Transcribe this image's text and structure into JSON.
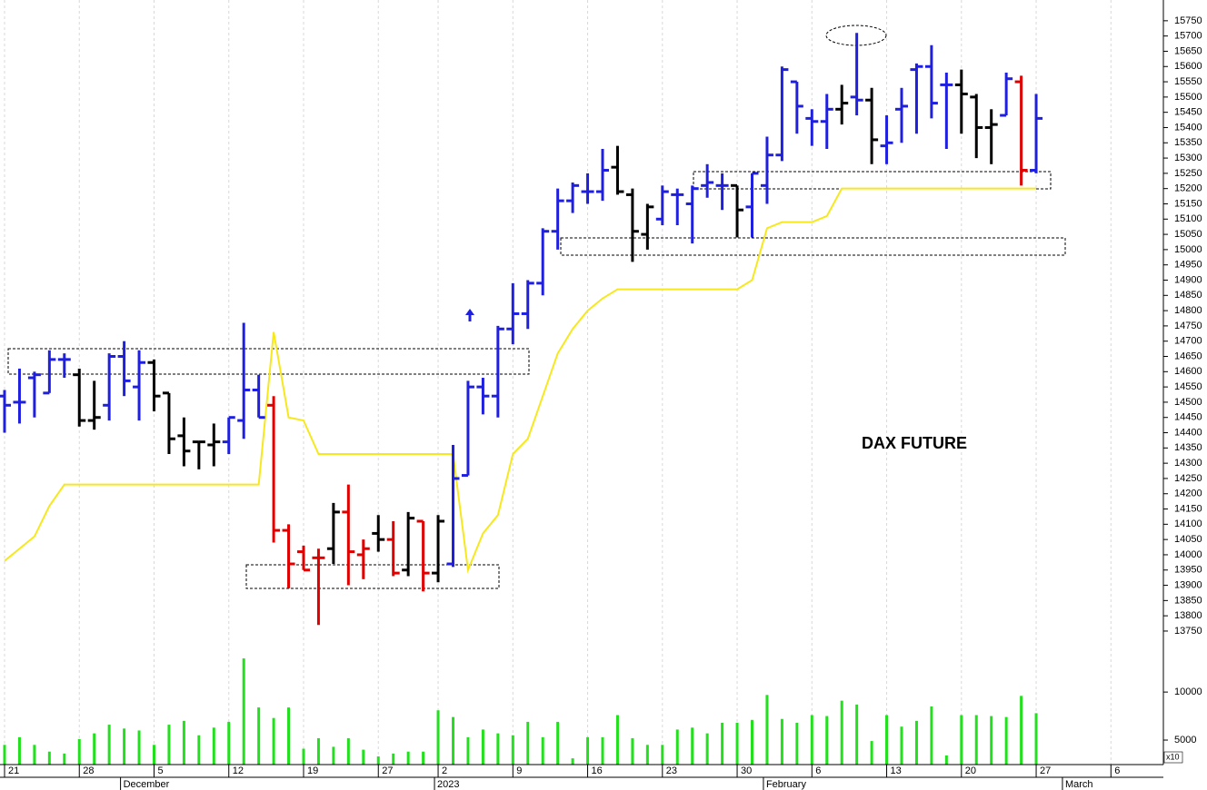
{
  "chart_data": {
    "type": "ohlc",
    "title": "DAX FUTURE",
    "categories": [
      "21",
      null,
      null,
      null,
      null,
      "28",
      null,
      null,
      null,
      null,
      "5",
      null,
      null,
      null,
      null,
      "12",
      null,
      null,
      null,
      null,
      "19",
      null,
      null,
      null,
      null,
      "27",
      null,
      null,
      null,
      "2",
      null,
      null,
      null,
      null,
      "9",
      null,
      null,
      null,
      null,
      "16",
      null,
      null,
      null,
      null,
      "23",
      null,
      null,
      null,
      null,
      "30",
      null,
      null,
      null,
      null,
      "6",
      null,
      null,
      null,
      null,
      "13",
      null,
      null,
      null,
      null,
      "20",
      null,
      null,
      null,
      null,
      "27",
      null,
      null,
      null,
      null,
      "6"
    ],
    "month_labels": [
      null,
      null,
      null,
      null,
      null,
      null,
      null,
      null,
      "December",
      null,
      null,
      null,
      null,
      null,
      null,
      null,
      null,
      null,
      null,
      null,
      null,
      null,
      null,
      null,
      null,
      null,
      null,
      null,
      null,
      "2023",
      null,
      null,
      null,
      null,
      null,
      null,
      null,
      null,
      null,
      null,
      null,
      null,
      null,
      null,
      null,
      null,
      null,
      null,
      null,
      null,
      null,
      "February",
      null,
      null,
      null,
      null,
      null,
      null,
      null,
      null,
      null,
      null,
      null,
      null,
      null,
      null,
      null,
      null,
      null,
      null,
      null,
      "March",
      null,
      null,
      null
    ],
    "open": [
      14520,
      14500,
      14580,
      14530,
      14640,
      14590,
      14440,
      14490,
      14650,
      14550,
      14630,
      14530,
      14390,
      14370,
      14360,
      14370,
      14440,
      14540,
      14490,
      14080,
      14010,
      13990,
      14020,
      14140,
      14000,
      14070,
      14050,
      13950,
      14110,
      13940,
      13970,
      14260,
      14550,
      14520,
      14740,
      14790,
      14890,
      15060,
      15160,
      15190,
      15190,
      15270,
      15180,
      15050,
      15100,
      15180,
      15150,
      15210,
      15210,
      15210,
      15140,
      15210,
      15310,
      15550,
      15430,
      15420,
      15460,
      15500,
      15490,
      15340,
      15460,
      15590,
      15600,
      15540,
      15540,
      15500,
      15400,
      15440,
      15550,
      15260,
      null,
      null,
      null,
      null,
      null
    ],
    "high": [
      14540,
      14610,
      14600,
      14670,
      14660,
      14610,
      14570,
      14660,
      14700,
      14670,
      14640,
      14530,
      14450,
      14370,
      14430,
      14450,
      14760,
      14590,
      14520,
      14100,
      14030,
      14020,
      14170,
      14230,
      14050,
      14130,
      14110,
      14140,
      14110,
      14130,
      14360,
      14570,
      14580,
      14750,
      14890,
      14900,
      15070,
      15200,
      15220,
      15250,
      15330,
      15340,
      15200,
      15150,
      15210,
      15200,
      15210,
      15280,
      15250,
      15210,
      15250,
      15370,
      15600,
      15550,
      15460,
      15510,
      15540,
      15710,
      15530,
      15440,
      15530,
      15610,
      15670,
      15580,
      15590,
      15510,
      15460,
      15580,
      15570,
      15510,
      null,
      null,
      null,
      null,
      null
    ],
    "low": [
      14400,
      14430,
      14450,
      14530,
      14580,
      14420,
      14410,
      14440,
      14520,
      14440,
      14470,
      14330,
      14290,
      14280,
      14290,
      14330,
      14380,
      14450,
      14040,
      13890,
      13950,
      13770,
      13970,
      13900,
      13920,
      14010,
      13930,
      13930,
      13880,
      13910,
      13960,
      14260,
      14460,
      14450,
      14690,
      14740,
      14850,
      15000,
      15120,
      15150,
      15160,
      15180,
      14960,
      15000,
      15080,
      15080,
      15020,
      15170,
      15130,
      15040,
      15040,
      15150,
      15290,
      15380,
      15340,
      15330,
      15410,
      15440,
      15280,
      15280,
      15350,
      15380,
      15430,
      15330,
      15380,
      15300,
      15280,
      15440,
      15210,
      15250,
      null,
      null,
      null,
      null,
      null
    ],
    "close": [
      14490,
      14500,
      14590,
      14640,
      14640,
      14440,
      14450,
      14650,
      14570,
      14630,
      14520,
      14380,
      14340,
      14370,
      14370,
      14450,
      14540,
      14450,
      14080,
      13970,
      13950,
      13990,
      14140,
      14010,
      14020,
      14050,
      13940,
      14120,
      13940,
      14110,
      14250,
      14550,
      14520,
      14740,
      14790,
      14890,
      15060,
      15160,
      15210,
      15190,
      15260,
      15190,
      15060,
      15140,
      15190,
      15180,
      15200,
      15220,
      15210,
      15130,
      15250,
      15310,
      15590,
      15470,
      15420,
      15460,
      15480,
      15490,
      15360,
      15350,
      15470,
      15600,
      15480,
      15540,
      15510,
      15400,
      15410,
      15560,
      15260,
      15430,
      null,
      null,
      null,
      null,
      null
    ],
    "bar_colors": [
      "#1f1fe0",
      "#1f1fe0",
      "#1f1fe0",
      "#1f1fe0",
      "#1f1fe0",
      "#000000",
      "#000000",
      "#1f1fe0",
      "#1f1fe0",
      "#1f1fe0",
      "#000000",
      "#000000",
      "#000000",
      "#000000",
      "#000000",
      "#1f1fe0",
      "#1f1fe0",
      "#1f1fe0",
      "#e00000",
      "#e00000",
      "#e00000",
      "#e00000",
      "#000000",
      "#e00000",
      "#e00000",
      "#000000",
      "#e00000",
      "#000000",
      "#e00000",
      "#000000",
      "#1f1fe0",
      "#1f1fe0",
      "#1f1fe0",
      "#1f1fe0",
      "#1f1fe0",
      "#1f1fe0",
      "#1f1fe0",
      "#1f1fe0",
      "#1f1fe0",
      "#1f1fe0",
      "#1f1fe0",
      "#000000",
      "#000000",
      "#000000",
      "#1f1fe0",
      "#1f1fe0",
      "#1f1fe0",
      "#1f1fe0",
      "#1f1fe0",
      "#000000",
      "#1f1fe0",
      "#1f1fe0",
      "#1f1fe0",
      "#1f1fe0",
      "#1f1fe0",
      "#1f1fe0",
      "#000000",
      "#1f1fe0",
      "#000000",
      "#1f1fe0",
      "#1f1fe0",
      "#1f1fe0",
      "#1f1fe0",
      "#1f1fe0",
      "#000000",
      "#000000",
      "#000000",
      "#1f1fe0",
      "#e00000",
      "#1f1fe0",
      null,
      null,
      null,
      null,
      null
    ],
    "stop_line": {
      "color": "#f7e81e",
      "values": [
        13980,
        14020,
        14060,
        14160,
        14230,
        14230,
        14230,
        14230,
        14230,
        14230,
        14230,
        14230,
        14230,
        14230,
        14230,
        14230,
        14230,
        14230,
        14730,
        14450,
        14440,
        14330,
        14330,
        14330,
        14330,
        14330,
        14330,
        14330,
        14330,
        14330,
        14330,
        13950,
        14070,
        14130,
        14330,
        14380,
        14520,
        14660,
        14740,
        14800,
        14840,
        14870,
        14870,
        14870,
        14870,
        14870,
        14870,
        14870,
        14870,
        14870,
        14900,
        15070,
        15090,
        15090,
        15090,
        15110,
        15200,
        15200,
        15200,
        15200,
        15200,
        15200,
        15200,
        15200,
        15200,
        15200,
        15200,
        15200,
        15200,
        15200,
        null,
        null,
        null,
        null,
        null
      ]
    },
    "volume": {
      "color": "#22e01e",
      "values": [
        4500,
        5300,
        4500,
        3800,
        3600,
        5100,
        5700,
        6600,
        6200,
        6000,
        4500,
        6600,
        7000,
        5500,
        6300,
        6900,
        13500,
        8400,
        7300,
        8400,
        4100,
        5200,
        4300,
        5200,
        4000,
        3300,
        3600,
        3800,
        3800,
        8100,
        7400,
        5300,
        6100,
        5700,
        5500,
        6900,
        5300,
        6900,
        3100,
        5300,
        5300,
        7600,
        5200,
        4500,
        4500,
        6100,
        6300,
        5700,
        6800,
        6800,
        7100,
        9700,
        7200,
        6800,
        7600,
        7500,
        9100,
        8700,
        4900,
        7600,
        6400,
        7000,
        8500,
        3400,
        7600,
        7600,
        7500,
        7400,
        9600,
        7800,
        null,
        null,
        null,
        null,
        null
      ]
    },
    "ylim": [
      13735,
      15818
    ],
    "yticks": [
      13750,
      13800,
      13850,
      13900,
      13950,
      14000,
      14050,
      14100,
      14150,
      14200,
      14250,
      14300,
      14350,
      14400,
      14450,
      14500,
      14550,
      14600,
      14650,
      14700,
      14750,
      14800,
      14850,
      14900,
      14950,
      15000,
      15050,
      15100,
      15150,
      15200,
      15250,
      15300,
      15350,
      15400,
      15450,
      15500,
      15550,
      15600,
      15650,
      15700,
      15750
    ],
    "volume_ylim": [
      2450,
      15400
    ],
    "volume_yticks": [
      5000,
      10000
    ],
    "volume_scale_label": "x10",
    "grid": true
  }
}
